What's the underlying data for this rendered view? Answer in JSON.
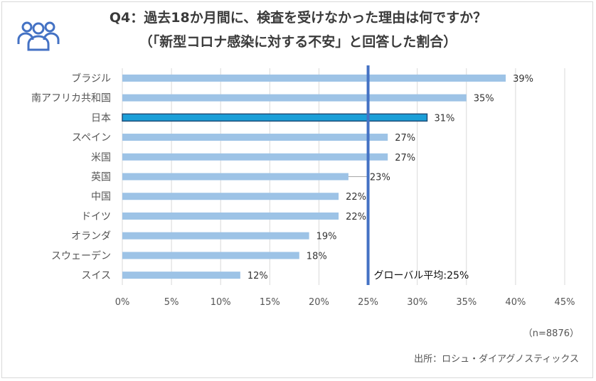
{
  "title_line1": "Q4：過去18か月間に、検査を受けなかった理由は何ですか？",
  "title_line2": "（「新型コロナ感染に対する不安」と回答した割合）",
  "sample_note": "（n=8876）",
  "source_note": "出所：ロシュ・ダイアグノスティックス",
  "icon": "users-icon",
  "colors": {
    "bar": "#9dc3e6",
    "highlight_bar": "#1b9fd8",
    "highlight_border": "#1f4e79",
    "average_line": "#4472c4",
    "grid": "#d9d9d9"
  },
  "chart_data": {
    "type": "bar",
    "orientation": "horizontal",
    "categories": [
      "ブラジル",
      "南アフリカ共和国",
      "日本",
      "スペイン",
      "米国",
      "英国",
      "中国",
      "ドイツ",
      "オランダ",
      "スウェーデン",
      "スイス"
    ],
    "values": [
      39,
      35,
      31,
      27,
      27,
      23,
      22,
      22,
      19,
      18,
      12
    ],
    "value_labels": [
      "39%",
      "35%",
      "31%",
      "27%",
      "27%",
      "23%",
      "22%",
      "22%",
      "19%",
      "18%",
      "12%"
    ],
    "highlight_category": "日本",
    "xlim": [
      0,
      45
    ],
    "x_ticks": [
      0,
      5,
      10,
      15,
      20,
      25,
      30,
      35,
      40,
      45
    ],
    "x_tick_labels": [
      "0%",
      "5%",
      "10%",
      "15%",
      "20%",
      "25%",
      "30%",
      "35%",
      "40%",
      "45%"
    ],
    "grid": true,
    "reference_line": {
      "value": 25,
      "label": "グローバル平均:25%"
    }
  }
}
